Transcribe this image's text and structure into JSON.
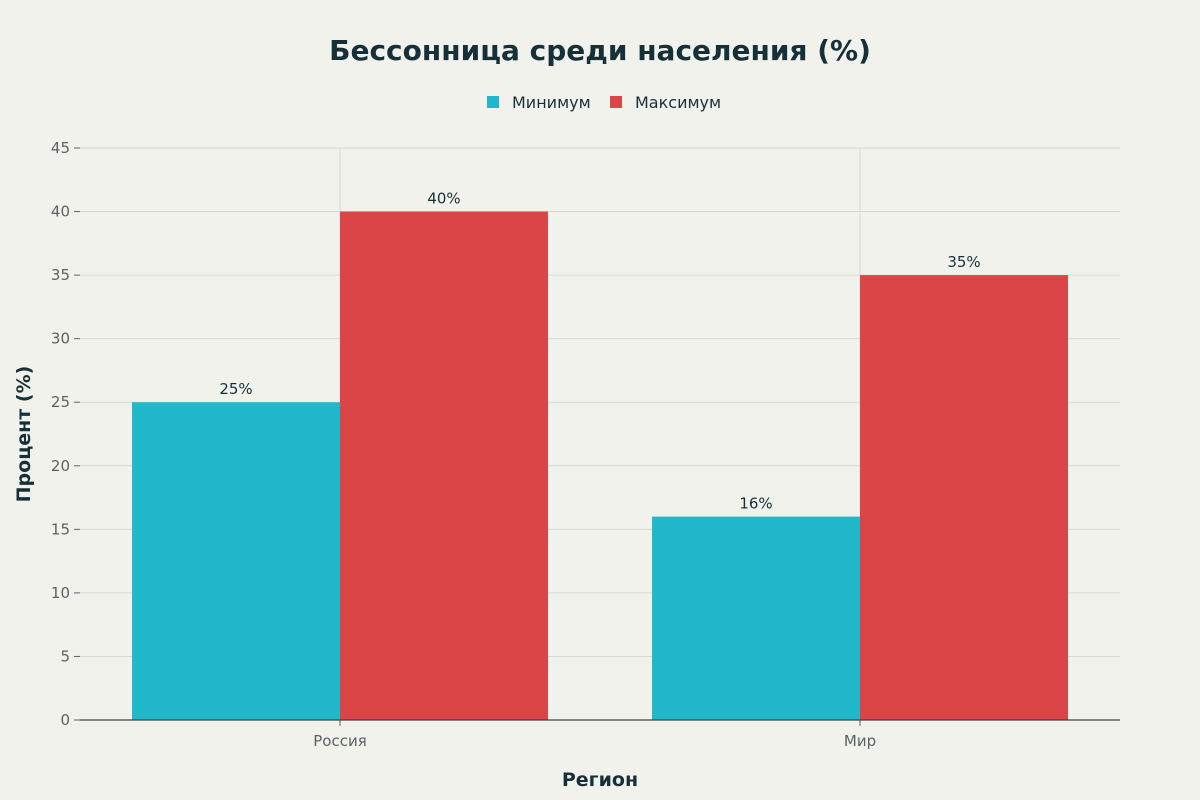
{
  "colors": {
    "background": "#f2f2ec",
    "series_min": "#21b8cc",
    "series_max": "#dc4548",
    "text": "#16303a"
  },
  "chart_data": {
    "type": "bar",
    "title": "Бессонница среди населения (%)",
    "xlabel": "Регион",
    "ylabel": "Процент (%)",
    "categories": [
      "Россия",
      "Мир"
    ],
    "series": [
      {
        "name": "Минимум",
        "values": [
          25,
          16
        ],
        "color": "#21b8cc"
      },
      {
        "name": "Максимум",
        "values": [
          40,
          35
        ],
        "color": "#dc4548"
      }
    ],
    "ylim": [
      0,
      45
    ],
    "yticks": [
      0,
      5,
      10,
      15,
      20,
      25,
      30,
      35,
      40,
      45
    ],
    "value_suffix": "%",
    "grid": true,
    "legend_position": "top-center"
  }
}
